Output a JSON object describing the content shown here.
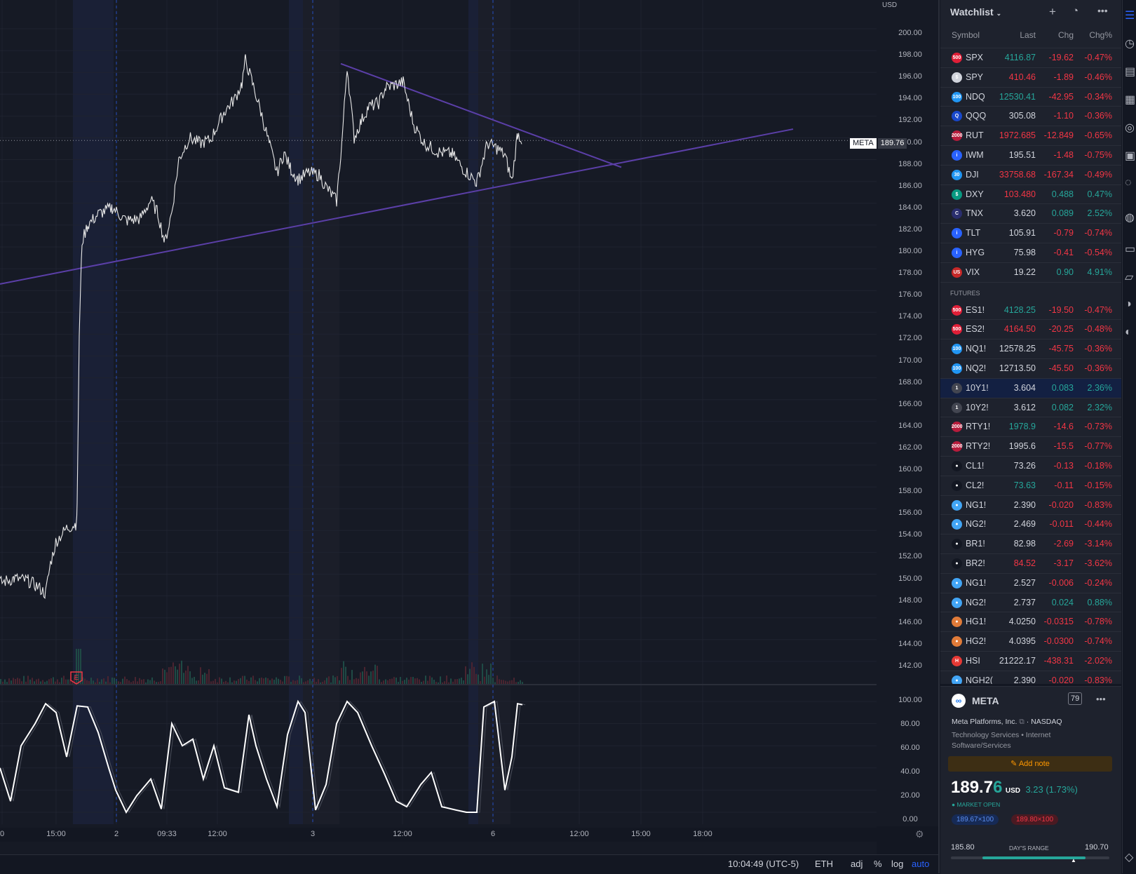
{
  "price_axis": {
    "currency": "USD",
    "ticks": [
      "200.00",
      "198.00",
      "196.00",
      "194.00",
      "192.00",
      "190.00",
      "188.00",
      "186.00",
      "184.00",
      "182.00",
      "180.00",
      "178.00",
      "176.00",
      "174.00",
      "172.00",
      "170.00",
      "168.00",
      "166.00",
      "164.00",
      "162.00",
      "160.00",
      "158.00",
      "156.00",
      "154.00",
      "152.00",
      "150.00",
      "148.00",
      "146.00",
      "144.00",
      "142.00"
    ],
    "last_label": "META",
    "last_value": "189.76"
  },
  "osc_axis": {
    "ticks": [
      "100.00",
      "80.00",
      "60.00",
      "40.00",
      "20.00",
      "0.00"
    ]
  },
  "time_axis": {
    "ticks": [
      "0",
      "15:00",
      "2",
      "09:33",
      "12:00",
      "3",
      "12:00",
      "6",
      "12:00",
      "15:00",
      "18:00"
    ]
  },
  "earnings_marker": "E",
  "bottom_bar": {
    "time": "10:04:49 (UTC-5)",
    "session": "ETH",
    "adj": "adj",
    "percent": "%",
    "log": "log",
    "auto": "auto"
  },
  "watchlist": {
    "title": "Watchlist",
    "columns": {
      "symbol": "Symbol",
      "last": "Last",
      "chg": "Chg",
      "pct": "Chg%"
    },
    "indices": [
      {
        "icon": "500",
        "color": "#e01e37",
        "sym": "SPX",
        "last": "4116.87",
        "chg": "-19.62",
        "pct": "-0.47%",
        "lc": "up",
        "cc": "dn"
      },
      {
        "icon": "$",
        "color": "#d1d4dc",
        "sym": "SPY",
        "last": "410.46",
        "chg": "-1.89",
        "pct": "-0.46%",
        "lc": "dn",
        "cc": "dn"
      },
      {
        "icon": "100",
        "color": "#2196f3",
        "sym": "NDQ",
        "last": "12530.41",
        "chg": "-42.95",
        "pct": "-0.34%",
        "lc": "up",
        "cc": "dn"
      },
      {
        "icon": "Q",
        "color": "#1848cc",
        "sym": "QQQ",
        "last": "305.08",
        "chg": "-1.10",
        "pct": "-0.36%",
        "lc": "wh",
        "cc": "dn"
      },
      {
        "icon": "2000",
        "color": "#b71c3c",
        "sym": "RUT",
        "last": "1972.685",
        "chg": "-12.849",
        "pct": "-0.65%",
        "lc": "dn",
        "cc": "dn"
      },
      {
        "icon": "i",
        "color": "#2962ff",
        "sym": "IWM",
        "last": "195.51",
        "chg": "-1.48",
        "pct": "-0.75%",
        "lc": "wh",
        "cc": "dn"
      },
      {
        "icon": "30",
        "color": "#2196f3",
        "sym": "DJI",
        "last": "33758.68",
        "chg": "-167.34",
        "pct": "-0.49%",
        "lc": "dn",
        "cc": "dn"
      },
      {
        "icon": "$",
        "color": "#089981",
        "sym": "DXY",
        "last": "103.480",
        "chg": "0.488",
        "pct": "0.47%",
        "lc": "dn",
        "cc": "up"
      },
      {
        "icon": "C",
        "color": "#2a2e6e",
        "sym": "TNX",
        "last": "3.620",
        "chg": "0.089",
        "pct": "2.52%",
        "lc": "wh",
        "cc": "up"
      },
      {
        "icon": "i",
        "color": "#2962ff",
        "sym": "TLT",
        "last": "105.91",
        "chg": "-0.79",
        "pct": "-0.74%",
        "lc": "wh",
        "cc": "dn"
      },
      {
        "icon": "i",
        "color": "#2962ff",
        "sym": "HYG",
        "last": "75.98",
        "chg": "-0.41",
        "pct": "-0.54%",
        "lc": "wh",
        "cc": "dn"
      },
      {
        "icon": "US",
        "color": "#c62828",
        "sym": "VIX",
        "last": "19.22",
        "chg": "0.90",
        "pct": "4.91%",
        "lc": "wh",
        "cc": "up"
      }
    ],
    "futures_label": "FUTURES",
    "futures": [
      {
        "icon": "500",
        "color": "#e01e37",
        "sym": "ES1!",
        "last": "4128.25",
        "chg": "-19.50",
        "pct": "-0.47%",
        "lc": "up",
        "cc": "dn"
      },
      {
        "icon": "500",
        "color": "#e01e37",
        "sym": "ES2!",
        "last": "4164.50",
        "chg": "-20.25",
        "pct": "-0.48%",
        "lc": "dn",
        "cc": "dn"
      },
      {
        "icon": "100",
        "color": "#2196f3",
        "sym": "NQ1!",
        "last": "12578.25",
        "chg": "-45.75",
        "pct": "-0.36%",
        "lc": "wh",
        "cc": "dn"
      },
      {
        "icon": "100",
        "color": "#2196f3",
        "sym": "NQ2!",
        "last": "12713.50",
        "chg": "-45.50",
        "pct": "-0.36%",
        "lc": "wh",
        "cc": "dn"
      },
      {
        "icon": "1",
        "color": "#434651",
        "sym": "10Y1!",
        "last": "3.604",
        "chg": "0.083",
        "pct": "2.36%",
        "lc": "wh",
        "cc": "up",
        "sel": true
      },
      {
        "icon": "1",
        "color": "#434651",
        "sym": "10Y2!",
        "last": "3.612",
        "chg": "0.082",
        "pct": "2.32%",
        "lc": "wh",
        "cc": "up"
      },
      {
        "icon": "2000",
        "color": "#b71c3c",
        "sym": "RTY1!",
        "last": "1978.9",
        "chg": "-14.6",
        "pct": "-0.73%",
        "lc": "up",
        "cc": "dn"
      },
      {
        "icon": "2000",
        "color": "#b71c3c",
        "sym": "RTY2!",
        "last": "1995.6",
        "chg": "-15.5",
        "pct": "-0.77%",
        "lc": "wh",
        "cc": "dn"
      },
      {
        "icon": "●",
        "color": "#131722",
        "sym": "CL1!",
        "last": "73.26",
        "chg": "-0.13",
        "pct": "-0.18%",
        "lc": "wh",
        "cc": "dn"
      },
      {
        "icon": "●",
        "color": "#131722",
        "sym": "CL2!",
        "last": "73.63",
        "chg": "-0.11",
        "pct": "-0.15%",
        "lc": "up",
        "cc": "dn"
      },
      {
        "icon": "●",
        "color": "#42a5f5",
        "sym": "NG1!",
        "last": "2.390",
        "chg": "-0.020",
        "pct": "-0.83%",
        "lc": "wh",
        "cc": "dn"
      },
      {
        "icon": "●",
        "color": "#42a5f5",
        "sym": "NG2!",
        "last": "2.469",
        "chg": "-0.011",
        "pct": "-0.44%",
        "lc": "wh",
        "cc": "dn"
      },
      {
        "icon": "●",
        "color": "#131722",
        "sym": "BR1!",
        "last": "82.98",
        "chg": "-2.69",
        "pct": "-3.14%",
        "lc": "wh",
        "cc": "dn"
      },
      {
        "icon": "●",
        "color": "#131722",
        "sym": "BR2!",
        "last": "84.52",
        "chg": "-3.17",
        "pct": "-3.62%",
        "lc": "dn",
        "cc": "dn"
      },
      {
        "icon": "●",
        "color": "#42a5f5",
        "sym": "NG1!",
        "last": "2.527",
        "chg": "-0.006",
        "pct": "-0.24%",
        "lc": "wh",
        "cc": "dn"
      },
      {
        "icon": "●",
        "color": "#42a5f5",
        "sym": "NG2!",
        "last": "2.737",
        "chg": "0.024",
        "pct": "0.88%",
        "lc": "wh",
        "cc": "up"
      },
      {
        "icon": "●",
        "color": "#e07b39",
        "sym": "HG1!",
        "last": "4.0250",
        "chg": "-0.0315",
        "pct": "-0.78%",
        "lc": "wh",
        "cc": "dn"
      },
      {
        "icon": "●",
        "color": "#e07b39",
        "sym": "HG2!",
        "last": "4.0395",
        "chg": "-0.0300",
        "pct": "-0.74%",
        "lc": "wh",
        "cc": "dn"
      },
      {
        "icon": "H",
        "color": "#e53935",
        "sym": "HSI",
        "last": "21222.17",
        "chg": "-438.31",
        "pct": "-2.02%",
        "lc": "wh",
        "cc": "dn"
      },
      {
        "icon": "●",
        "color": "#42a5f5",
        "sym": "NGH2(",
        "last": "2.390",
        "chg": "-0.020",
        "pct": "-0.83%",
        "lc": "wh",
        "cc": "dn"
      }
    ]
  },
  "detail": {
    "symbol": "META",
    "badge": "79",
    "company": "Meta Platforms, Inc.",
    "exchange": "NASDAQ",
    "sector": "Technology Services • Internet Software/Services",
    "add_note": "Add note",
    "price_main": "189.7",
    "price_last": "6",
    "currency": "USD",
    "change": "3.23 (1.73%)",
    "status": "MARKET OPEN",
    "bid": "189.67×100",
    "ask": "189.80×100",
    "range_low": "185.80",
    "range_label": "DAY'S RANGE",
    "range_high": "190.70",
    "range_fill": 0.85
  },
  "chart_data": {
    "type": "line",
    "symbol": "META",
    "ylim": [
      141,
      201
    ],
    "price_series": [
      [
        0,
        149.2
      ],
      [
        20,
        149.6
      ],
      [
        40,
        149.4
      ],
      [
        55,
        148.8
      ],
      [
        65,
        148.2
      ],
      [
        72,
        151
      ],
      [
        80,
        153
      ],
      [
        95,
        154.2
      ],
      [
        108,
        154.6
      ],
      [
        110,
        156
      ],
      [
        113,
        172
      ],
      [
        117,
        180.5
      ],
      [
        125,
        182
      ],
      [
        140,
        183
      ],
      [
        160,
        183.6
      ],
      [
        180,
        182.4
      ],
      [
        200,
        182.6
      ],
      [
        215,
        184.3
      ],
      [
        225,
        183.1
      ],
      [
        235,
        180.4
      ],
      [
        245,
        183.2
      ],
      [
        255,
        188
      ],
      [
        270,
        190
      ],
      [
        285,
        189.5
      ],
      [
        300,
        189.8
      ],
      [
        320,
        192.4
      ],
      [
        335,
        193.6
      ],
      [
        345,
        195
      ],
      [
        350,
        197.2
      ],
      [
        360,
        195
      ],
      [
        372,
        192.4
      ],
      [
        385,
        189.2
      ],
      [
        395,
        186.8
      ],
      [
        405,
        188.6
      ],
      [
        415,
        187.1
      ],
      [
        425,
        186.2
      ],
      [
        440,
        186.8
      ],
      [
        455,
        186.6
      ],
      [
        465,
        185.5
      ],
      [
        480,
        184.2
      ],
      [
        488,
        190
      ],
      [
        495,
        196.6
      ],
      [
        505,
        190
      ],
      [
        515,
        191.5
      ],
      [
        525,
        192.8
      ],
      [
        540,
        193.2
      ],
      [
        550,
        194.6
      ],
      [
        575,
        195.1
      ],
      [
        590,
        191.2
      ],
      [
        605,
        189.5
      ],
      [
        625,
        188.7
      ],
      [
        645,
        188.5
      ],
      [
        660,
        187.2
      ],
      [
        680,
        185.9
      ],
      [
        695,
        189.5
      ],
      [
        710,
        189
      ],
      [
        720,
        188.4
      ],
      [
        730,
        186
      ],
      [
        738,
        190.4
      ],
      [
        745,
        189.8
      ]
    ],
    "osc_series": [
      [
        0,
        40
      ],
      [
        15,
        10
      ],
      [
        30,
        60
      ],
      [
        50,
        80
      ],
      [
        65,
        98
      ],
      [
        80,
        90
      ],
      [
        95,
        50
      ],
      [
        110,
        96
      ],
      [
        125,
        95
      ],
      [
        140,
        72
      ],
      [
        155,
        40
      ],
      [
        165,
        20
      ],
      [
        180,
        0
      ],
      [
        195,
        15
      ],
      [
        215,
        30
      ],
      [
        230,
        3
      ],
      [
        245,
        80
      ],
      [
        260,
        60
      ],
      [
        275,
        66
      ],
      [
        290,
        30
      ],
      [
        305,
        60
      ],
      [
        320,
        22
      ],
      [
        340,
        18
      ],
      [
        355,
        88
      ],
      [
        365,
        60
      ],
      [
        380,
        30
      ],
      [
        395,
        5
      ],
      [
        410,
        70
      ],
      [
        425,
        100
      ],
      [
        435,
        90
      ],
      [
        450,
        2
      ],
      [
        465,
        25
      ],
      [
        480,
        80
      ],
      [
        495,
        100
      ],
      [
        510,
        90
      ],
      [
        530,
        60
      ],
      [
        548,
        35
      ],
      [
        565,
        10
      ],
      [
        580,
        5
      ],
      [
        600,
        25
      ],
      [
        615,
        36
      ],
      [
        630,
        5
      ],
      [
        650,
        2
      ],
      [
        665,
        0
      ],
      [
        680,
        0
      ],
      [
        690,
        95
      ],
      [
        705,
        100
      ],
      [
        720,
        20
      ],
      [
        730,
        50
      ],
      [
        738,
        98
      ],
      [
        745,
        97
      ]
    ],
    "trendlines": [
      {
        "from": [
          0,
          176.6
        ],
        "to": [
          1131,
          190.8
        ]
      },
      {
        "from": [
          486,
          196.8
        ],
        "to": [
          886,
          187.3
        ]
      }
    ]
  }
}
